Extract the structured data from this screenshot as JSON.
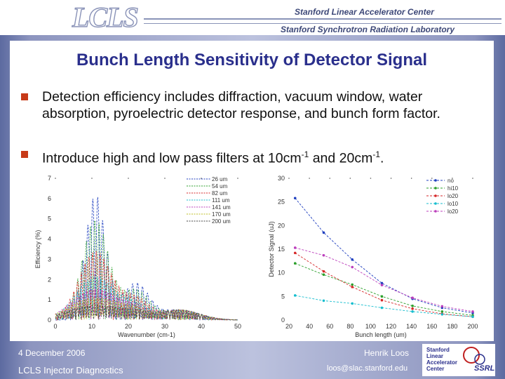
{
  "header": {
    "logo": "LCLS",
    "org_line1": "Stanford Linear Accelerator Center",
    "org_line2": "Stanford Synchrotron Radiation Laboratory"
  },
  "slide": {
    "title": "Bunch Length Sensitivity of Detector Signal",
    "bullet1": "Detection efficiency includes diffraction, vacuum window, water absorption, pyroelectric detector response, and bunch form factor.",
    "bullet2_pre": "Introduce high and low pass filters at 10cm",
    "bullet2_sup1": "-1",
    "bullet2_mid": " and 20cm",
    "bullet2_sup2": "-1",
    "bullet2_post": "."
  },
  "footer": {
    "date": "4 December 2006",
    "author": "Henrik Loos",
    "course": "LCLS Injector Diagnostics",
    "email": "loos@slac.stanford.edu",
    "logo_line1": "Stanford",
    "logo_line2": "Linear",
    "logo_line3": "Accelerator",
    "logo_line4": "Center",
    "logo_ssrl": "SSRL"
  },
  "chart_data": [
    {
      "type": "line",
      "xlabel": "Wavenumber (cm-1)",
      "ylabel": "Efficiency (%)",
      "xlim": [
        0,
        50
      ],
      "ylim": [
        0,
        7
      ],
      "xticks": [
        "0",
        "10",
        "20",
        "30",
        "40",
        "50"
      ],
      "yticks": [
        "0",
        "1",
        "2",
        "3",
        "4",
        "5",
        "6",
        "7"
      ],
      "series": [
        {
          "name": "26 um",
          "color": "#1f3fbf"
        },
        {
          "name": "54 um",
          "color": "#2ca02c"
        },
        {
          "name": "82 um",
          "color": "#d62728"
        },
        {
          "name": "111 um",
          "color": "#17becf"
        },
        {
          "name": "141 um",
          "color": "#bc3fbc"
        },
        {
          "name": "170 um",
          "color": "#bcbd22"
        },
        {
          "name": "200 um",
          "color": "#444444"
        }
      ]
    },
    {
      "type": "line",
      "xlabel": "Bunch length (um)",
      "ylabel": "Detector Signal (uJ)",
      "xlim": [
        20,
        200
      ],
      "ylim": [
        0,
        30
      ],
      "xticks": [
        "20",
        "40",
        "60",
        "80",
        "100",
        "120",
        "140",
        "160",
        "180",
        "200"
      ],
      "yticks": [
        "0",
        "5",
        "10",
        "15",
        "20",
        "25",
        "30"
      ],
      "x": [
        26,
        54,
        82,
        111,
        141,
        170,
        200
      ],
      "series": [
        {
          "name": "no",
          "color": "#1f3fbf",
          "values": [
            25.8,
            18.5,
            12.8,
            7.8,
            4.5,
            2.6,
            1.5
          ]
        },
        {
          "name": "hi10",
          "color": "#2ca02c",
          "values": [
            12.0,
            9.6,
            7.5,
            5.0,
            3.0,
            1.8,
            1.0
          ]
        },
        {
          "name": "lo20",
          "color": "#d62728",
          "values": [
            14.2,
            10.3,
            7.0,
            4.2,
            2.4,
            1.3,
            0.7
          ]
        },
        {
          "name": "lo10",
          "color": "#17becf",
          "values": [
            5.2,
            4.1,
            3.5,
            2.6,
            1.8,
            1.2,
            0.7
          ]
        },
        {
          "name": "lo20",
          "color": "#bc3fbc",
          "values": [
            15.3,
            13.7,
            11.2,
            7.4,
            4.7,
            2.9,
            1.8
          ]
        }
      ]
    }
  ]
}
